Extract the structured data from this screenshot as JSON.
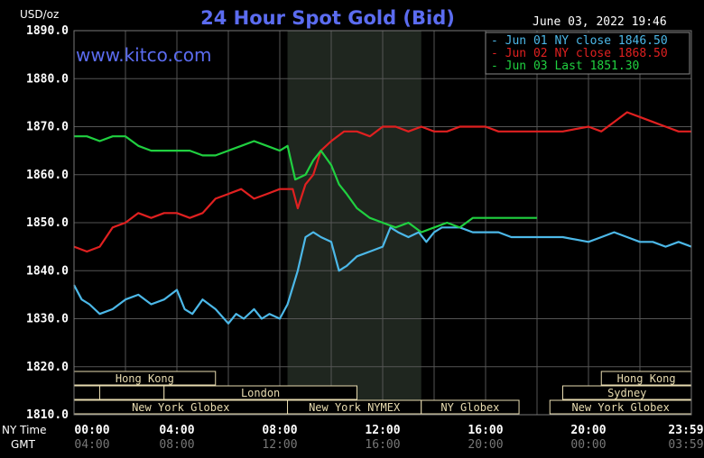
{
  "chart_data": {
    "type": "line",
    "title": "24 Hour Spot Gold (Bid)",
    "unit_label": "USD/oz",
    "date_time": "June 03, 2022 19:46",
    "watermark": "www.kitco.com",
    "y_ticks": [
      "1890.0",
      "1880.0",
      "1870.0",
      "1860.0",
      "1850.0",
      "1840.0",
      "1830.0",
      "1820.0",
      "1810.0"
    ],
    "ylim": [
      1810,
      1890
    ],
    "x_range_hours": [
      0,
      24
    ],
    "x_ticks_ny": [
      "00:00",
      "04:00",
      "08:00",
      "12:00",
      "16:00",
      "20:00",
      "23:59"
    ],
    "x_ticks_gmt": [
      "04:00",
      "08:00",
      "12:00",
      "16:00",
      "20:00",
      "00:00",
      "03:59"
    ],
    "x_tick_hours": [
      0,
      4,
      8,
      12,
      16,
      20,
      23.98
    ],
    "ny_time_label": "NY Time",
    "gmt_label": "GMT",
    "highlight_hours": [
      8.3,
      13.5
    ],
    "grid": true,
    "legend_position": "top-right",
    "series": [
      {
        "name": "Jun 01 NY close 1846.50",
        "color": "#4cb8e8",
        "x": [
          0,
          0.3,
          0.6,
          1,
          1.5,
          2,
          2.5,
          3,
          3.5,
          4,
          4.3,
          4.6,
          5,
          5.5,
          6,
          6.3,
          6.6,
          7,
          7.3,
          7.6,
          8,
          8.3,
          8.7,
          9,
          9.3,
          9.6,
          10,
          10.3,
          10.6,
          11,
          11.5,
          12,
          12.3,
          12.6,
          13,
          13.4,
          13.7,
          14,
          14.3,
          14.7,
          15,
          15.5,
          16,
          16.5,
          17,
          17.5,
          18,
          19,
          20,
          20.5,
          21,
          21.5,
          22,
          22.5,
          23,
          23.5,
          24
        ],
        "values": [
          1837,
          1834,
          1833,
          1831,
          1832,
          1834,
          1835,
          1833,
          1834,
          1836,
          1832,
          1831,
          1834,
          1832,
          1829,
          1831,
          1830,
          1832,
          1830,
          1831,
          1830,
          1833,
          1840,
          1847,
          1848,
          1847,
          1846,
          1840,
          1841,
          1843,
          1844,
          1845,
          1849,
          1848,
          1847,
          1848,
          1846,
          1848,
          1849,
          1849,
          1849,
          1848,
          1848,
          1848,
          1847,
          1847,
          1847,
          1847,
          1846,
          1847,
          1848,
          1847,
          1846,
          1846,
          1845,
          1846,
          1845
        ]
      },
      {
        "name": "Jun 02 NY close 1868.50",
        "color": "#e02020",
        "x": [
          0,
          0.5,
          1,
          1.5,
          2,
          2.5,
          3,
          3.5,
          4,
          4.5,
          5,
          5.5,
          6,
          6.5,
          7,
          7.5,
          8,
          8.5,
          8.7,
          9,
          9.3,
          9.6,
          10,
          10.5,
          11,
          11.5,
          12,
          12.5,
          13,
          13.5,
          14,
          14.5,
          15,
          15.5,
          16,
          16.5,
          17,
          18,
          19,
          20,
          20.5,
          21,
          21.5,
          22,
          22.5,
          23,
          23.5,
          24
        ],
        "values": [
          1845,
          1844,
          1845,
          1849,
          1850,
          1852,
          1851,
          1852,
          1852,
          1851,
          1852,
          1855,
          1856,
          1857,
          1855,
          1856,
          1857,
          1857,
          1853,
          1858,
          1860,
          1865,
          1867,
          1869,
          1869,
          1868,
          1870,
          1870,
          1869,
          1870,
          1869,
          1869,
          1870,
          1870,
          1870,
          1869,
          1869,
          1869,
          1869,
          1870,
          1869,
          1871,
          1873,
          1872,
          1871,
          1870,
          1869,
          1869
        ]
      },
      {
        "name": "Jun 03 Last 1851.30",
        "color": "#20d040",
        "x": [
          0,
          0.5,
          1,
          1.5,
          2,
          2.5,
          3,
          3.5,
          4,
          4.5,
          5,
          5.5,
          6,
          6.5,
          7,
          7.5,
          8,
          8.3,
          8.6,
          9,
          9.3,
          9.6,
          10,
          10.3,
          10.6,
          11,
          11.5,
          12,
          12.5,
          13,
          13.5,
          14,
          14.5,
          15,
          15.5,
          16,
          16.5,
          17,
          17.5,
          18
        ],
        "values": [
          1868,
          1868,
          1867,
          1868,
          1868,
          1866,
          1865,
          1865,
          1865,
          1865,
          1864,
          1864,
          1865,
          1866,
          1867,
          1866,
          1865,
          1866,
          1859,
          1860,
          1863,
          1865,
          1862,
          1858,
          1856,
          1853,
          1851,
          1850,
          1849,
          1850,
          1848,
          1849,
          1850,
          1849,
          1851,
          1851,
          1851,
          1851,
          1851,
          1851
        ]
      }
    ],
    "sessions": [
      {
        "label": "Hong Kong",
        "start": 0,
        "end": 5.5,
        "row": 0
      },
      {
        "label": "Hong Kong",
        "start": 20.5,
        "end": 24,
        "row": 0
      },
      {
        "label": "",
        "start": 0,
        "end": 1,
        "row": 1
      },
      {
        "label": "",
        "start": 1,
        "end": 3.5,
        "row": 1
      },
      {
        "label": "London",
        "start": 3.5,
        "end": 11,
        "row": 1
      },
      {
        "label": "Sydney",
        "start": 19,
        "end": 24,
        "row": 1
      },
      {
        "label": "New York Globex",
        "start": 0,
        "end": 8.3,
        "row": 2
      },
      {
        "label": "New York NYMEX",
        "start": 8.3,
        "end": 13.5,
        "row": 2
      },
      {
        "label": "NY Globex",
        "start": 13.5,
        "end": 17.3,
        "row": 2
      },
      {
        "label": "New York Globex",
        "start": 18.5,
        "end": 24,
        "row": 2
      }
    ]
  }
}
